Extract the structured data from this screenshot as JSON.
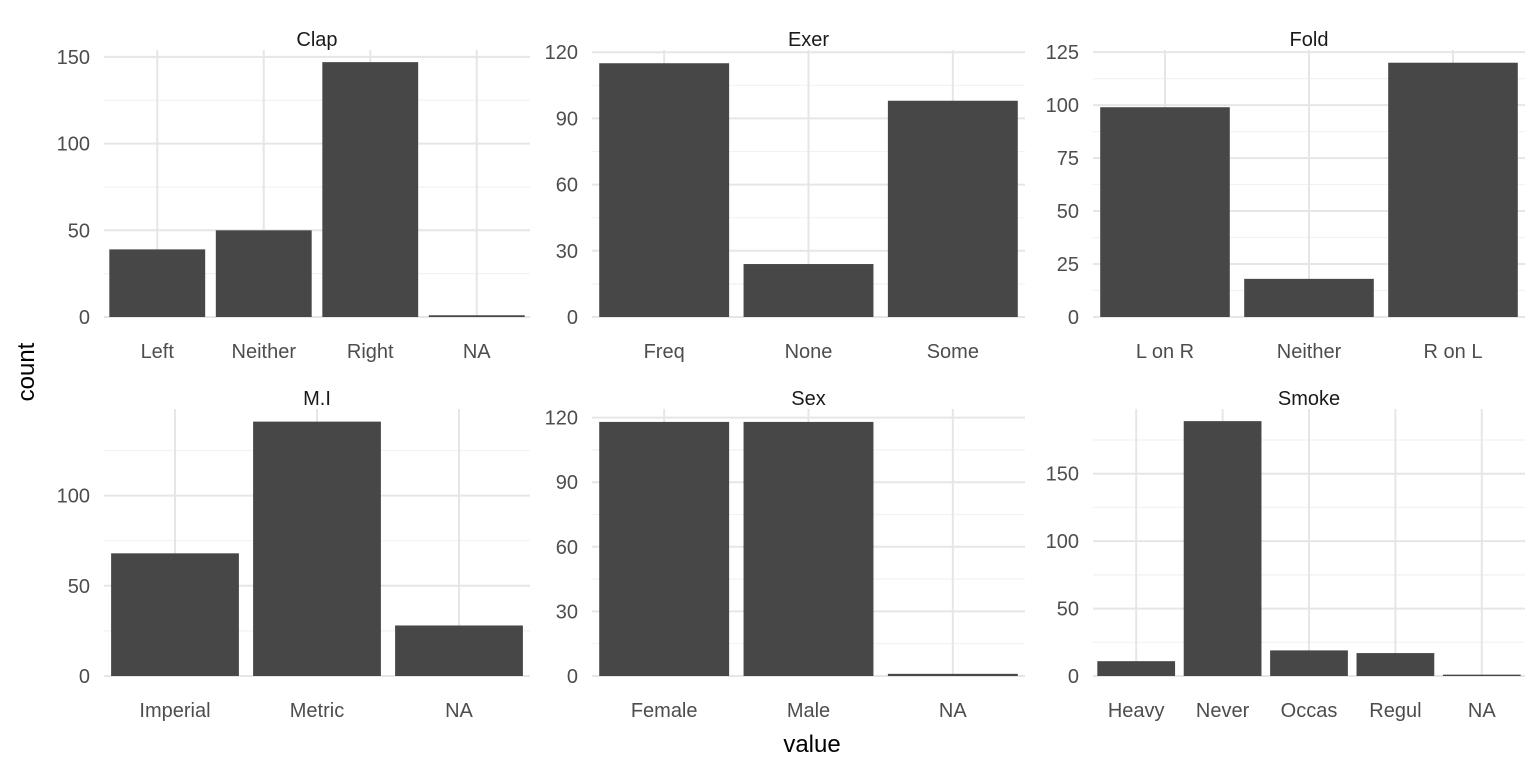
{
  "xlabel": "value",
  "ylabel": "count",
  "colors": {
    "bar": "#474747",
    "grid_major": "#e6e6e6",
    "grid_minor": "#f2f2f2",
    "tick_text": "#4d4d4d",
    "title_text": "#1a1a1a",
    "background": "#ffffff"
  },
  "chart_data": [
    {
      "type": "bar",
      "title": "Clap",
      "categories": [
        "Left",
        "Neither",
        "Right",
        "NA"
      ],
      "values": [
        39,
        50,
        147,
        1
      ],
      "yticks": [
        0,
        50,
        100,
        150
      ],
      "ylim": [
        0,
        154
      ],
      "grid": true
    },
    {
      "type": "bar",
      "title": "Exer",
      "categories": [
        "Freq",
        "None",
        "Some"
      ],
      "values": [
        115,
        24,
        98
      ],
      "yticks": [
        0,
        30,
        60,
        90,
        120
      ],
      "ylim": [
        0,
        121
      ],
      "grid": true
    },
    {
      "type": "bar",
      "title": "Fold",
      "categories": [
        "L on R",
        "Neither",
        "R on L"
      ],
      "values": [
        99,
        18,
        120
      ],
      "yticks": [
        0,
        25,
        50,
        75,
        100,
        125
      ],
      "ylim": [
        0,
        126
      ],
      "grid": true
    },
    {
      "type": "bar",
      "title": "M.I",
      "categories": [
        "Imperial",
        "Metric",
        "NA"
      ],
      "values": [
        68,
        141,
        28
      ],
      "yticks": [
        0,
        50,
        100
      ],
      "ylim": [
        0,
        148
      ],
      "grid": true
    },
    {
      "type": "bar",
      "title": "Sex",
      "categories": [
        "Female",
        "Male",
        "NA"
      ],
      "values": [
        118,
        118,
        1
      ],
      "yticks": [
        0,
        30,
        60,
        90,
        120
      ],
      "ylim": [
        0,
        124
      ],
      "grid": true
    },
    {
      "type": "bar",
      "title": "Smoke",
      "categories": [
        "Heavy",
        "Never",
        "Occas",
        "Regul",
        "NA"
      ],
      "values": [
        11,
        189,
        19,
        17,
        1
      ],
      "yticks": [
        0,
        50,
        100,
        150
      ],
      "ylim": [
        0,
        198
      ],
      "grid": true
    }
  ]
}
